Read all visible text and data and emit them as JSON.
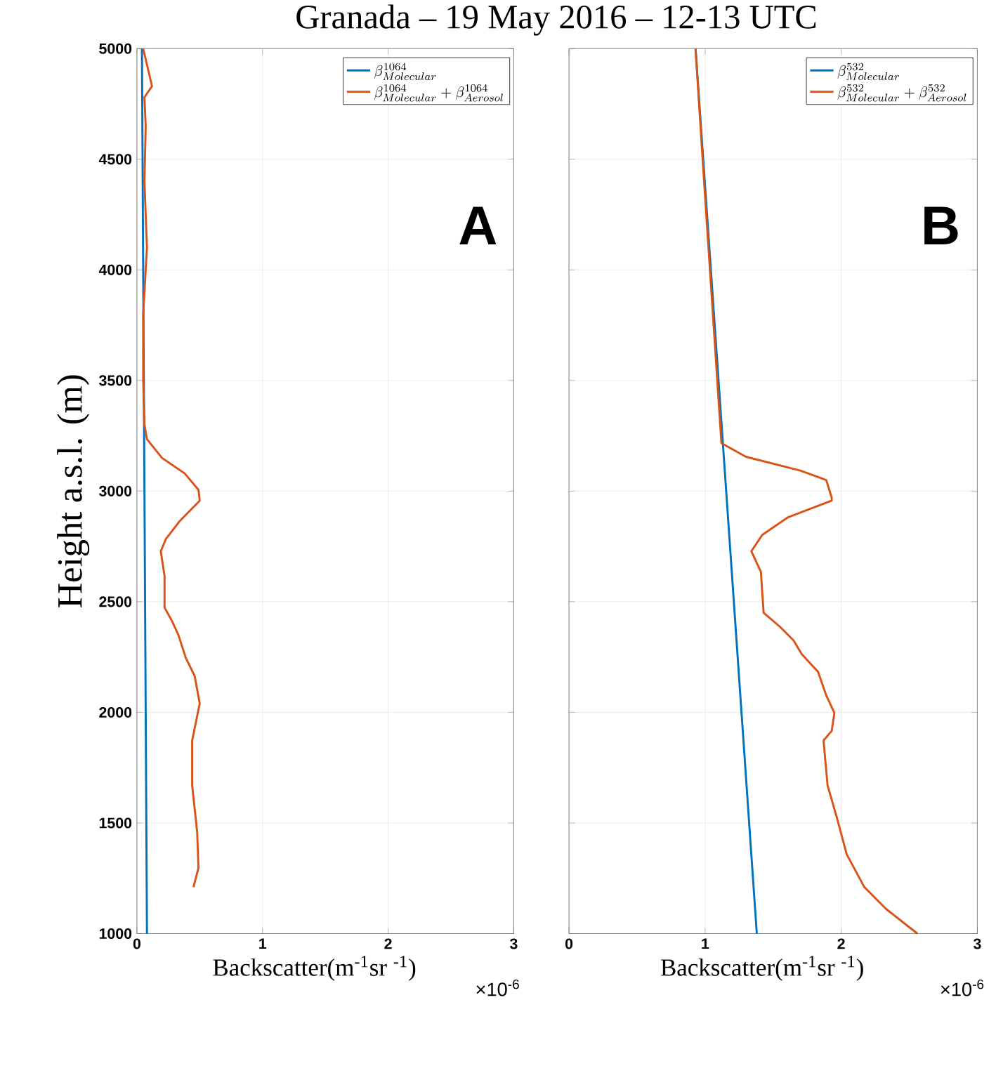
{
  "chart_data": [
    {
      "type": "line",
      "title": "Granada – 19 May 2016 – 12-13 UTC",
      "ylabel": "Height a.s.l. (m)",
      "xlabel": "Backscatter(m$^{-1}$sr $^{-1}$)",
      "annotations": [
        "A",
        "×10$^{-6}$"
      ],
      "xlim": [
        0,
        3
      ],
      "xticks": [
        0,
        1,
        2,
        3
      ],
      "ylim": [
        1000,
        5000
      ],
      "yticks": [
        1000,
        1500,
        2000,
        2500,
        3000,
        3500,
        4000,
        4500,
        5000
      ],
      "grid": true,
      "legend": "top right",
      "series": [
        {
          "name": "\\beta^{1064}_{Molecular}",
          "color": "#0072bd",
          "x": [
            0.04,
            0.08
          ],
          "values": [
            5000,
            1000
          ]
        },
        {
          "name": "\\beta^{1064}_{Molecular}+\\beta^{1064}_{Aerosol}",
          "color": "#d95319",
          "x": [
            0.05,
            0.12,
            0.06,
            0.07,
            0.06,
            0.08,
            0.05,
            0.05,
            0.06,
            0.08,
            0.2,
            0.38,
            0.49,
            0.5,
            0.34,
            0.23,
            0.19,
            0.22,
            0.22,
            0.28,
            0.33,
            0.39,
            0.46,
            0.5,
            0.44,
            0.44,
            0.48,
            0.49,
            0.45
          ],
          "values": [
            5000,
            4830,
            4780,
            4650,
            4400,
            4100,
            3800,
            3500,
            3300,
            3235,
            3150,
            3080,
            3006,
            2957,
            2864,
            2783,
            2728,
            2616,
            2474,
            2412,
            2350,
            2245,
            2164,
            2040,
            1873,
            1669,
            1458,
            1297,
            1210
          ]
        }
      ]
    },
    {
      "type": "line",
      "xlabel": "Backscatter(m$^{-1}$sr $^{-1}$)",
      "annotations": [
        "B",
        "×10$^{-6}$"
      ],
      "xlim": [
        0,
        3
      ],
      "xticks": [
        0,
        1,
        2,
        3
      ],
      "ylim": [
        1000,
        5000
      ],
      "yticks": [
        1000,
        1500,
        2000,
        2500,
        3000,
        3500,
        4000,
        4500,
        5000
      ],
      "tick_labels": "x",
      "grid": true,
      "legend": "top right",
      "series": [
        {
          "name": "\\beta^{532}_{Molecular}",
          "color": "#0072bd",
          "x": [
            0.93,
            1.38
          ],
          "values": [
            5000,
            1000
          ]
        },
        {
          "name": "\\beta^{532}_{Molecular}+\\beta^{532}_{Aerosol}",
          "color": "#d95319",
          "x": [
            0.93,
            0.98,
            1.12,
            1.3,
            1.7,
            1.89,
            1.93,
            1.93,
            1.61,
            1.42,
            1.34,
            1.41,
            1.43,
            1.55,
            1.65,
            1.71,
            1.83,
            1.89,
            1.95,
            1.93,
            1.87,
            1.9,
            1.97,
            2.04,
            2.17,
            2.33,
            2.56
          ],
          "values": [
            5000,
            4517,
            3217,
            3155,
            3093,
            3050,
            2970,
            2957,
            2882,
            2802,
            2728,
            2635,
            2450,
            2387,
            2325,
            2263,
            2183,
            2077,
            1997,
            1916,
            1873,
            1669,
            1520,
            1359,
            1210,
            1111,
            1000
          ]
        }
      ]
    }
  ]
}
